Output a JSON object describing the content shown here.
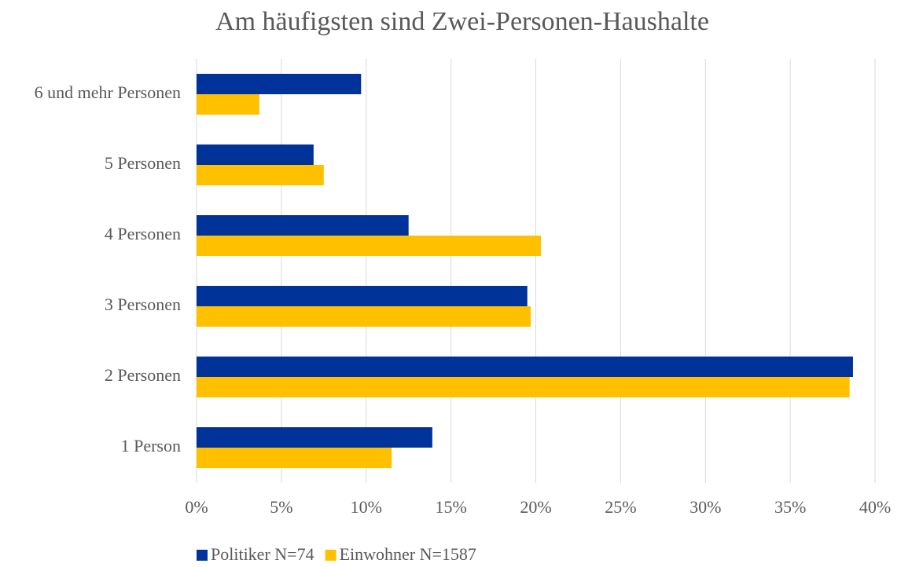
{
  "chart_data": {
    "type": "hbar",
    "title": "Am häufigsten sind Zwei-Personen-Haushalte",
    "categories": [
      "1 Person",
      "2 Personen",
      "3 Personen",
      "4 Personen",
      "5 Personen",
      "6 und mehr Personen"
    ],
    "series": [
      {
        "name": "Politiker N=74",
        "color": "#003399",
        "values": [
          13.9,
          38.7,
          19.5,
          12.5,
          6.9,
          9.7
        ]
      },
      {
        "name": "Einwohner N=1587",
        "color": "#ffc000",
        "values": [
          11.5,
          38.5,
          19.7,
          20.3,
          7.5,
          3.7
        ]
      }
    ],
    "xlim": [
      0,
      40
    ],
    "xticks": [
      {
        "value": 0,
        "label": "0%"
      },
      {
        "value": 5,
        "label": "5%"
      },
      {
        "value": 10,
        "label": "10%"
      },
      {
        "value": 15,
        "label": "15%"
      },
      {
        "value": 20,
        "label": "20%"
      },
      {
        "value": 25,
        "label": "25%"
      },
      {
        "value": 30,
        "label": "30%"
      },
      {
        "value": 35,
        "label": "35%"
      },
      {
        "value": 40,
        "label": "40%"
      }
    ],
    "grid": true,
    "legend": "bottom"
  }
}
